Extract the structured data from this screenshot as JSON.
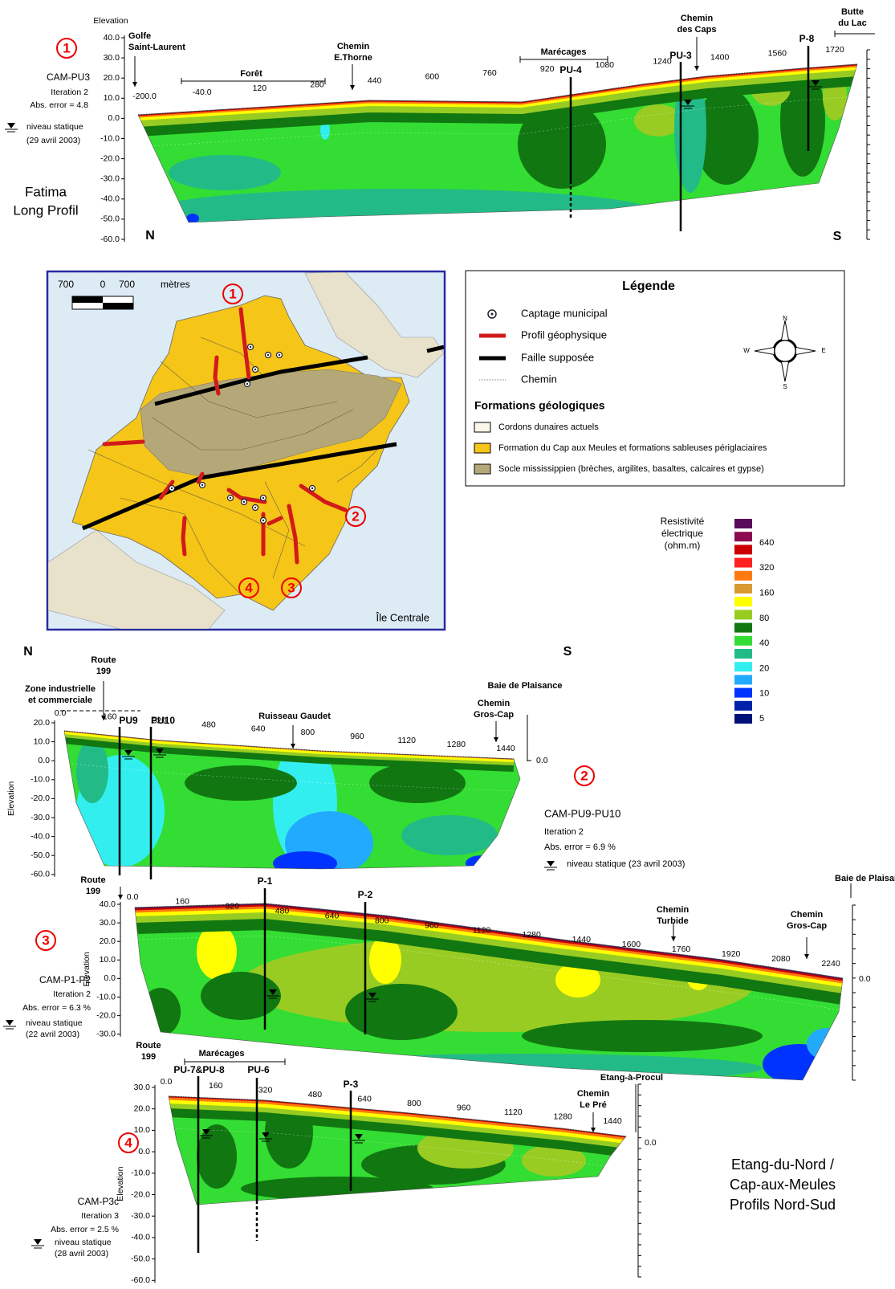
{
  "profile_1": {
    "number": "1",
    "elevation_title": "Elevation",
    "yticks": [
      "40.0",
      "30.0",
      "20.0",
      "10.0",
      "0.0",
      "-10.0",
      "-20.0",
      "-30.0",
      "-40.0",
      "-50.0",
      "-60.0"
    ],
    "distances": [
      "-200.0",
      "-40.0",
      "120",
      "280",
      "440",
      "600",
      "760",
      "920",
      "1080",
      "1240",
      "1400",
      "1560",
      "1720"
    ],
    "model": "CAM-PU3",
    "iteration": "Iteration 2",
    "error": "Abs. error = 4.8",
    "static_level": "niveau statique",
    "date": "(29 avril 2003)",
    "name": [
      "Fatima",
      "Long Profil"
    ],
    "north": "N",
    "south": "S",
    "annotations": [
      [
        "Golfe",
        "Saint-Laurent"
      ],
      [
        "Forêt"
      ],
      [
        "Chemin",
        "E.Thorne"
      ],
      [
        "Marécages"
      ],
      [
        "PU-4"
      ],
      [
        "Chemin",
        "des Caps"
      ],
      [
        "PU-3"
      ],
      [
        "P-8"
      ],
      [
        "Butte",
        "du Lac"
      ]
    ]
  },
  "map": {
    "scale": [
      "700",
      "0",
      "700"
    ],
    "scale_unit": "mètres",
    "name": "Île Centrale",
    "profile_numbers": [
      "1",
      "2",
      "3",
      "4"
    ]
  },
  "legend": {
    "title": "Légende",
    "items": [
      "Captage municipal",
      "Profil géophysique",
      "Faille supposée",
      "Chemin"
    ],
    "formations_title": "Formations géologiques",
    "formations": [
      "Cordons dunaires actuels",
      "Formation du Cap aux Meules et formations sableuses périglaciaires",
      "Socle mississippien  (brèches, argilites, basaltes, calcaires et gypse)"
    ],
    "compass": [
      "N",
      "W",
      "E",
      "S"
    ]
  },
  "resistivity": {
    "title": [
      "Resistivité",
      "électrique",
      "(ohm.m)"
    ],
    "labels": [
      "640",
      "320",
      "160",
      "80",
      "40",
      "20",
      "10",
      "5"
    ]
  },
  "profile_2": {
    "number": "2",
    "north": "N",
    "south": "S",
    "elevation_title": "Elevation",
    "yticks": [
      "20.0",
      "10.0",
      "0.0",
      "-10.0",
      "-20.0",
      "-30.0",
      "-40.0",
      "-50.0",
      "-60.0"
    ],
    "distances": [
      "0.0",
      "160",
      "320",
      "480",
      "640",
      "800",
      "960",
      "1120",
      "1280",
      "1440"
    ],
    "right_tick": "0.0",
    "model": "CAM-PU9-PU10",
    "iteration": "Iteration 2",
    "error": "Abs. error = 6.9 %",
    "static_level": "niveau statique (23 avril 2003)",
    "annotations": [
      [
        "Route",
        "199"
      ],
      [
        "Zone industrielle",
        "et commerciale"
      ],
      [
        "PU9"
      ],
      [
        "PU10"
      ],
      [
        "Ruisseau Gaudet"
      ],
      [
        "Baie de Plaisance"
      ],
      [
        "Chemin",
        "Gros-Cap"
      ]
    ]
  },
  "profile_3": {
    "number": "3",
    "elevation_title": "Elevation",
    "yticks": [
      "40.0",
      "30.0",
      "20.0",
      "10.0",
      "0.0",
      "-10.0",
      "-20.0",
      "-30.0"
    ],
    "distances": [
      "0.0",
      "160",
      "320",
      "480",
      "640",
      "800",
      "960",
      "1120",
      "1280",
      "1440",
      "1600",
      "1760",
      "1920",
      "2080",
      "2240"
    ],
    "right_tick": "0.0",
    "model": "CAM-P1-P2",
    "iteration": "Iteration 2",
    "error": "Abs. error = 6.3 %",
    "static_level": "niveau statique",
    "date": "(22 avril 2003)",
    "annotations": [
      [
        "Route",
        "199"
      ],
      [
        "P-1"
      ],
      [
        "P-2"
      ],
      [
        "Baie de Plaisance"
      ],
      [
        "Chemin",
        "Turbide"
      ],
      [
        "Chemin",
        "Gros-Cap"
      ]
    ]
  },
  "profile_4": {
    "number": "4",
    "elevation_title": "Elevation",
    "yticks": [
      "30.0",
      "20.0",
      "10.0",
      "0.0",
      "-10.0",
      "-20.0",
      "-30.0",
      "-40.0",
      "-50.0",
      "-60.0"
    ],
    "distances": [
      "0.0",
      "160",
      "320",
      "480",
      "640",
      "800",
      "960",
      "1120",
      "1280",
      "1440"
    ],
    "right_tick": "0.0",
    "model": "CAM-P3c",
    "iteration": "Iteration 3",
    "error": "Abs. error = 2.5 %",
    "static_level": "niveau statique",
    "date": "(28 avril 2003)",
    "annotations": [
      [
        "Route",
        "199"
      ],
      [
        "Marécages"
      ],
      [
        "PU-7&PU-8"
      ],
      [
        "PU-6"
      ],
      [
        "P-3"
      ],
      [
        "Etang-à-Procul"
      ],
      [
        "Chemin",
        "Le Pré"
      ]
    ],
    "title": [
      "Etang-du-Nord /",
      "Cap-aux-Meules",
      "Profils Nord-Sud"
    ]
  }
}
